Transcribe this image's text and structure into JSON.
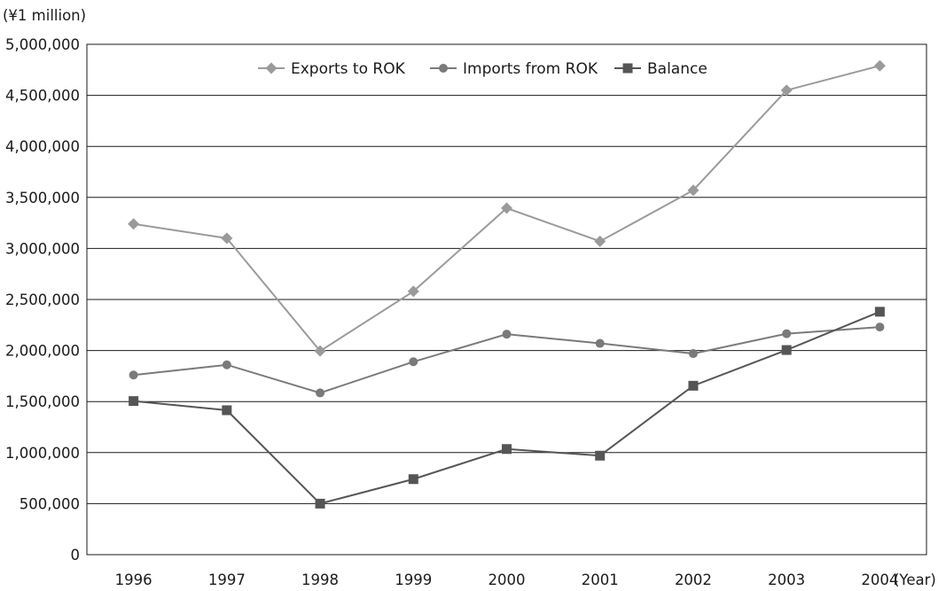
{
  "chart_data": {
    "type": "line",
    "title": "",
    "ylabel": "(¥1 million)",
    "xlabel": "(Year)",
    "ylim": [
      0,
      5000000
    ],
    "yticks": [
      0,
      500000,
      1000000,
      1500000,
      2000000,
      2500000,
      3000000,
      3500000,
      4000000,
      4500000,
      5000000
    ],
    "ytick_labels": [
      "0",
      "500,000",
      "1,000,000",
      "1,500,000",
      "2,000,000",
      "2,500,000",
      "3,000,000",
      "3,500,000",
      "4,000,000",
      "4,500,000",
      "5,000,000"
    ],
    "categories": [
      "1996",
      "1997",
      "1998",
      "1999",
      "2000",
      "2001",
      "2002",
      "2003",
      "2004"
    ],
    "grid": "horizontal",
    "legend_position": "top-center",
    "series": [
      {
        "name": "Exports to ROK",
        "marker": "diamond",
        "color": "#9a9a9a",
        "values": [
          3240000,
          3100000,
          1995000,
          2580000,
          3395000,
          3070000,
          3570000,
          4550000,
          4790000
        ]
      },
      {
        "name": "Imports from ROK",
        "marker": "circle",
        "color": "#7a7a7a",
        "values": [
          1760000,
          1860000,
          1585000,
          1890000,
          2160000,
          2070000,
          1970000,
          2165000,
          2230000
        ]
      },
      {
        "name": "Balance",
        "marker": "square",
        "color": "#555555",
        "values": [
          1505000,
          1415000,
          500000,
          740000,
          1035000,
          970000,
          1655000,
          2005000,
          2380000
        ]
      }
    ]
  }
}
